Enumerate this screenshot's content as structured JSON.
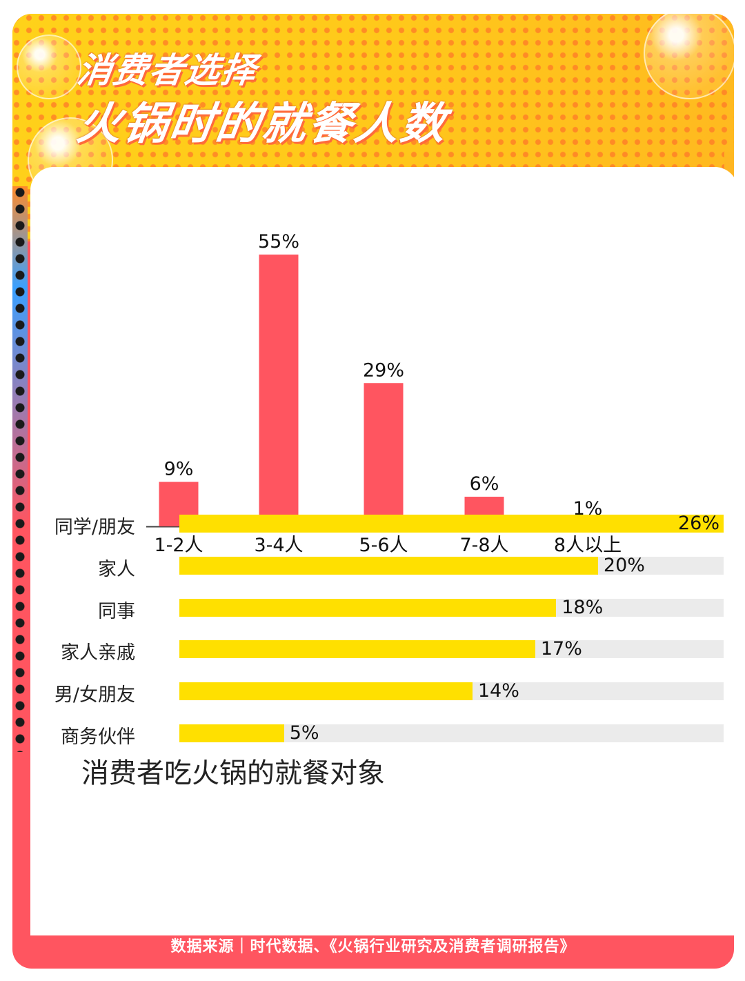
{
  "title_line1": "消费者选择",
  "title_line2": "火锅时的就餐人数",
  "chart_data": [
    {
      "type": "bar",
      "title": "",
      "categories": [
        "1-2人",
        "3-4人",
        "5-6人",
        "7-8人",
        "8人以上"
      ],
      "values": [
        9,
        55,
        29,
        6,
        1
      ],
      "labels": [
        "9%",
        "55%",
        "29%",
        "6%",
        "1%"
      ],
      "unit": "%",
      "ylim": [
        0,
        55
      ],
      "grid": false,
      "color": "#ff5560"
    },
    {
      "type": "bar",
      "orientation": "horizontal",
      "title": "消费者吃火锅的就餐对象",
      "categories": [
        "同学/朋友",
        "家人",
        "同事",
        "家人亲戚",
        "男/女朋友",
        "商务伙伴"
      ],
      "values": [
        26,
        20,
        18,
        17,
        14,
        5
      ],
      "labels": [
        "26%",
        "20%",
        "18%",
        "17%",
        "14%",
        "5%"
      ],
      "unit": "%",
      "xlim": [
        0,
        26
      ],
      "grid": false,
      "color": "#ffe000",
      "track_color": "#ebebeb"
    }
  ],
  "footer": "数据来源｜时代数据、《火锅行业研究及消费者调研报告》",
  "colors": {
    "accent": "#ff5560",
    "header_yellow": "#ffd21a",
    "bar_yellow": "#ffe000"
  }
}
